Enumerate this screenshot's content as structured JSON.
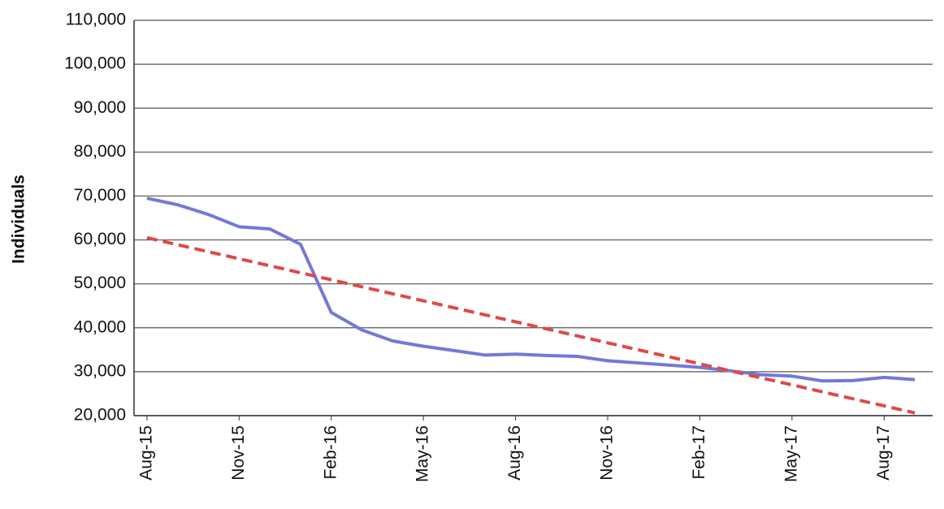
{
  "chart_data": {
    "type": "line",
    "y_label": "Individuals",
    "categories": [
      "Aug-15",
      null,
      null,
      "Nov-15",
      null,
      null,
      "Feb-16",
      null,
      null,
      "May-16",
      null,
      null,
      "Aug-16",
      null,
      null,
      "Nov-16",
      null,
      null,
      "Feb-17",
      null,
      null,
      "May-17",
      null,
      null,
      "Aug-17",
      null
    ],
    "series": [
      {
        "color": "#7478d8",
        "style": "solid",
        "values": [
          69500,
          68000,
          65800,
          63000,
          62500,
          59000,
          43500,
          39500,
          37000,
          35800,
          34800,
          33800,
          34000,
          33700,
          33500,
          32500,
          32000,
          31500,
          31000,
          30200,
          29300,
          29000,
          27900,
          28000,
          28700,
          28200
        ]
      },
      {
        "color": "#e0474c",
        "style": "dashed",
        "values": [
          60500,
          58905,
          57310,
          55715,
          54120,
          52525,
          50930,
          49335,
          47740,
          46145,
          44550,
          42955,
          41360,
          39765,
          38170,
          36575,
          34980,
          33385,
          31790,
          30195,
          28600,
          27005,
          25410,
          23815,
          22220,
          20625
        ]
      }
    ],
    "ylim": [
      20000,
      110000
    ],
    "yticks": [
      {
        "value": 20000,
        "label": "20,000"
      },
      {
        "value": 30000,
        "label": "30,000"
      },
      {
        "value": 40000,
        "label": "40,000"
      },
      {
        "value": 50000,
        "label": "50,000"
      },
      {
        "value": 60000,
        "label": "60,000"
      },
      {
        "value": 70000,
        "label": "70,000"
      },
      {
        "value": 80000,
        "label": "80,000"
      },
      {
        "value": 90000,
        "label": "90,000"
      },
      {
        "value": 100000,
        "label": "100,000"
      },
      {
        "value": 110000,
        "label": "110,000"
      }
    ],
    "grid": true
  }
}
